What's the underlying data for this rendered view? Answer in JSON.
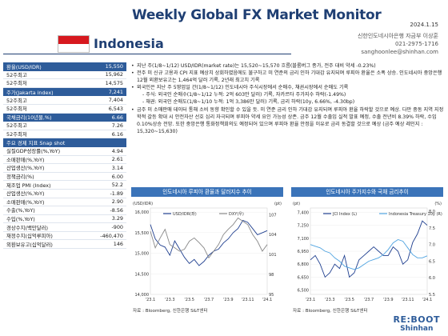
{
  "header": {
    "title": "Weekly Global FX Market Monitor",
    "date": "2024.1.15"
  },
  "country": {
    "name": "Indonesia",
    "flag_colors": [
      "#d7191f",
      "#ffffff"
    ]
  },
  "contact": {
    "org": "신한인도네시아은행 자금부 이상훈",
    "phone": "021-2975-1716",
    "email": "sanghoonlee@shinhan.com"
  },
  "sidebar": {
    "rows": [
      {
        "label": "환율(USD/IDR)",
        "value": "15,550",
        "head": true
      },
      {
        "label": "52주최고",
        "value": "15,962"
      },
      {
        "label": "52주최저",
        "value": "14,575"
      },
      {
        "label": "주가(Jakarta index)",
        "value": "7,241",
        "head": true
      },
      {
        "label": "52주최고",
        "value": "7,404"
      },
      {
        "label": "52주최저",
        "value": "6,543"
      },
      {
        "label": "국채금리(10년물,%)",
        "value": "6.66",
        "head": true
      },
      {
        "label": "52주최고",
        "value": "7.26"
      },
      {
        "label": "52주최저",
        "value": "6.16"
      },
      {
        "label": "주요 경제 지표 Snap shot",
        "value": "",
        "head": true
      },
      {
        "label": "실질GDP성장률(%,YoY)",
        "value": "4.94"
      },
      {
        "label": "소매판매(%,YoY)",
        "value": "2.61"
      },
      {
        "label": "산업생산(%,YoY)",
        "value": "3.14"
      },
      {
        "label": "정책금리(%)",
        "value": "6.00"
      },
      {
        "label": "제조업 PMI (Index)",
        "value": "52.2"
      },
      {
        "label": "산업생산(%,YoY)",
        "value": "-1.89"
      },
      {
        "label": "소매판매(%,YoY)",
        "value": "2.90"
      },
      {
        "label": "수출(%,YoY)",
        "value": "-8.56"
      },
      {
        "label": "수입(%,YoY)",
        "value": "3.29"
      },
      {
        "label": "경상수지(백만달러)",
        "value": "-900"
      },
      {
        "label": "재정수지(십억루피아)",
        "value": "-460,470"
      },
      {
        "label": "외환보유고(십억달러)",
        "value": "146"
      }
    ]
  },
  "bullets": [
    {
      "text": "지난 주(1/8~1/12) USD/IDR(market rate)는 15,520~15,570 흐름(블룸버그 종가, 전주 대비 약세 -0.23%)",
      "sub": false
    },
    {
      "text": "전주 미 신규 고용과 CPI 지표 예상치 상회하였음에도 불구하고 미 연준의 금리 인하 기대감 유지되며 루피아 환율은 소폭 상승. 인도네시아 중앙은행 12월 외환보유고는 1,464억 달러 기록, 2년래 최고치 기록",
      "sub": false
    },
    {
      "text": "외국인은 지난 주 5영업일 간(1/8~1/12) 인도네시아 주식시장에서 순매수, 채권시장에서 순매도 기록",
      "sub": false
    },
    {
      "text": "- 주식: 외국인 순매수(1/8~1/12 누적: 2억 603만 달러) 기록, 자카르타 주가지수 하락(-1.49%)",
      "sub": true
    },
    {
      "text": "- 채권: 외국인 순매도(1/8~1/10 누적: 1억 3,386만 달러) 기록, 금리 하락(10y, 6.66%, -4.30bp)",
      "sub": true
    },
    {
      "text": "금주 미 소매판매 데이터 통해 소비 동향 확인할 수 있을 듯. 미 연준 금리 인하 기대감 유지되며 루피아 환율 하락할 것으로 예상. 다만 중동 지역 지정학적 갈등 확대 시 안전자산 선호 심리 자극되며 루피아 약세 요인 가능성 상존. 금주 12월 수출입 실적 발표 예정, 수출 전년비 8.39% 하락, 수입 0.10%상승 전망. 또한 중앙은행 통화정책회의도 예정되어 있으며 루피아 환율 안정을 이유로 금리 동결할 것으로 예상 (금주 예상 레인지 : 15,320~15,630)",
      "sub": false
    }
  ],
  "charts": [
    {
      "title": "인도네시아 루피아 환율과 달러지수 추이",
      "source": "자료 : Bloomberg, 신한은행 S&T센터",
      "chart_data": {
        "type": "line",
        "left_axis_label": "(USD/IDR)",
        "right_axis_label": "(pt)",
        "x_ticks": [
          "'23.1",
          "'23.3",
          "'23.5",
          "'23.7",
          "'23.9",
          "'23.11",
          "'24.1"
        ],
        "y_left_ticks": [
          16000,
          15500,
          15000,
          14500,
          14000
        ],
        "y_right_ticks": [
          107,
          104,
          101,
          98,
          95
        ],
        "ylim_left": [
          14000,
          16100
        ],
        "ylim_right": [
          95,
          108
        ],
        "series": [
          {
            "name": "USD/IDR(좌)",
            "color": "#1f3f8f",
            "axis": "left",
            "values": [
              15700,
              15350,
              15200,
              15150,
              14950,
              15300,
              15100,
              14900,
              14750,
              14850,
              14700,
              14800,
              14950,
              15050,
              15100,
              15250,
              15350,
              15500,
              15600,
              15800,
              15750,
              15600,
              15450,
              15500,
              15550
            ]
          },
          {
            "name": "DXY(우)",
            "color": "#888888",
            "axis": "right",
            "values": [
              104.5,
              102.0,
              103.5,
              104.8,
              102.5,
              102.0,
              101.5,
              101.8,
              103.0,
              103.5,
              102.8,
              102.0,
              100.5,
              101.5,
              102.5,
              104.0,
              104.8,
              105.5,
              106.5,
              106.0,
              105.5,
              104.0,
              103.0,
              101.5,
              102.5
            ]
          }
        ]
      }
    },
    {
      "title": "인도네시아 주가지수와 국채 금리추이",
      "source": "자료 : Bloomberg, 신한은행 S&T센터",
      "chart_data": {
        "type": "line",
        "left_axis_label": "(pt)",
        "right_axis_label": "(%)",
        "x_ticks": [
          "'23.1",
          "'23.3",
          "'23.5",
          "'23.7",
          "'23.9",
          "'23.11",
          "'24.1"
        ],
        "y_left_ticks": [
          7400,
          7250,
          7100,
          6950,
          6800,
          6650,
          6500
        ],
        "y_right_ticks": [
          8.0,
          7.5,
          7.0,
          6.5,
          6.0,
          5.5
        ],
        "ylim_left": [
          6450,
          7450
        ],
        "ylim_right": [
          5.5,
          8.1
        ],
        "series": [
          {
            "name": "JCI Index (L)",
            "color": "#1f3f8f",
            "axis": "left",
            "values": [
              6850,
              6900,
              6800,
              6650,
              6700,
              6800,
              6750,
              6900,
              6650,
              6700,
              6850,
              6900,
              6950,
              7000,
              6950,
              6900,
              6900,
              7000,
              6950,
              6800,
              6850,
              7050,
              7150,
              7300,
              7250
            ]
          },
          {
            "name": "Indonesia Treasury 10y (R)",
            "color": "#4fa3e0",
            "axis": "right",
            "values": [
              7.0,
              6.95,
              6.9,
              6.8,
              6.75,
              6.6,
              6.5,
              6.35,
              6.3,
              6.25,
              6.3,
              6.4,
              6.5,
              6.55,
              6.6,
              6.7,
              6.85,
              7.05,
              7.15,
              7.1,
              6.9,
              6.7,
              6.6,
              6.6,
              6.66
            ]
          }
        ]
      }
    }
  ],
  "logo": {
    "line1": "RE:BOOT",
    "line2": "Shinhan"
  }
}
